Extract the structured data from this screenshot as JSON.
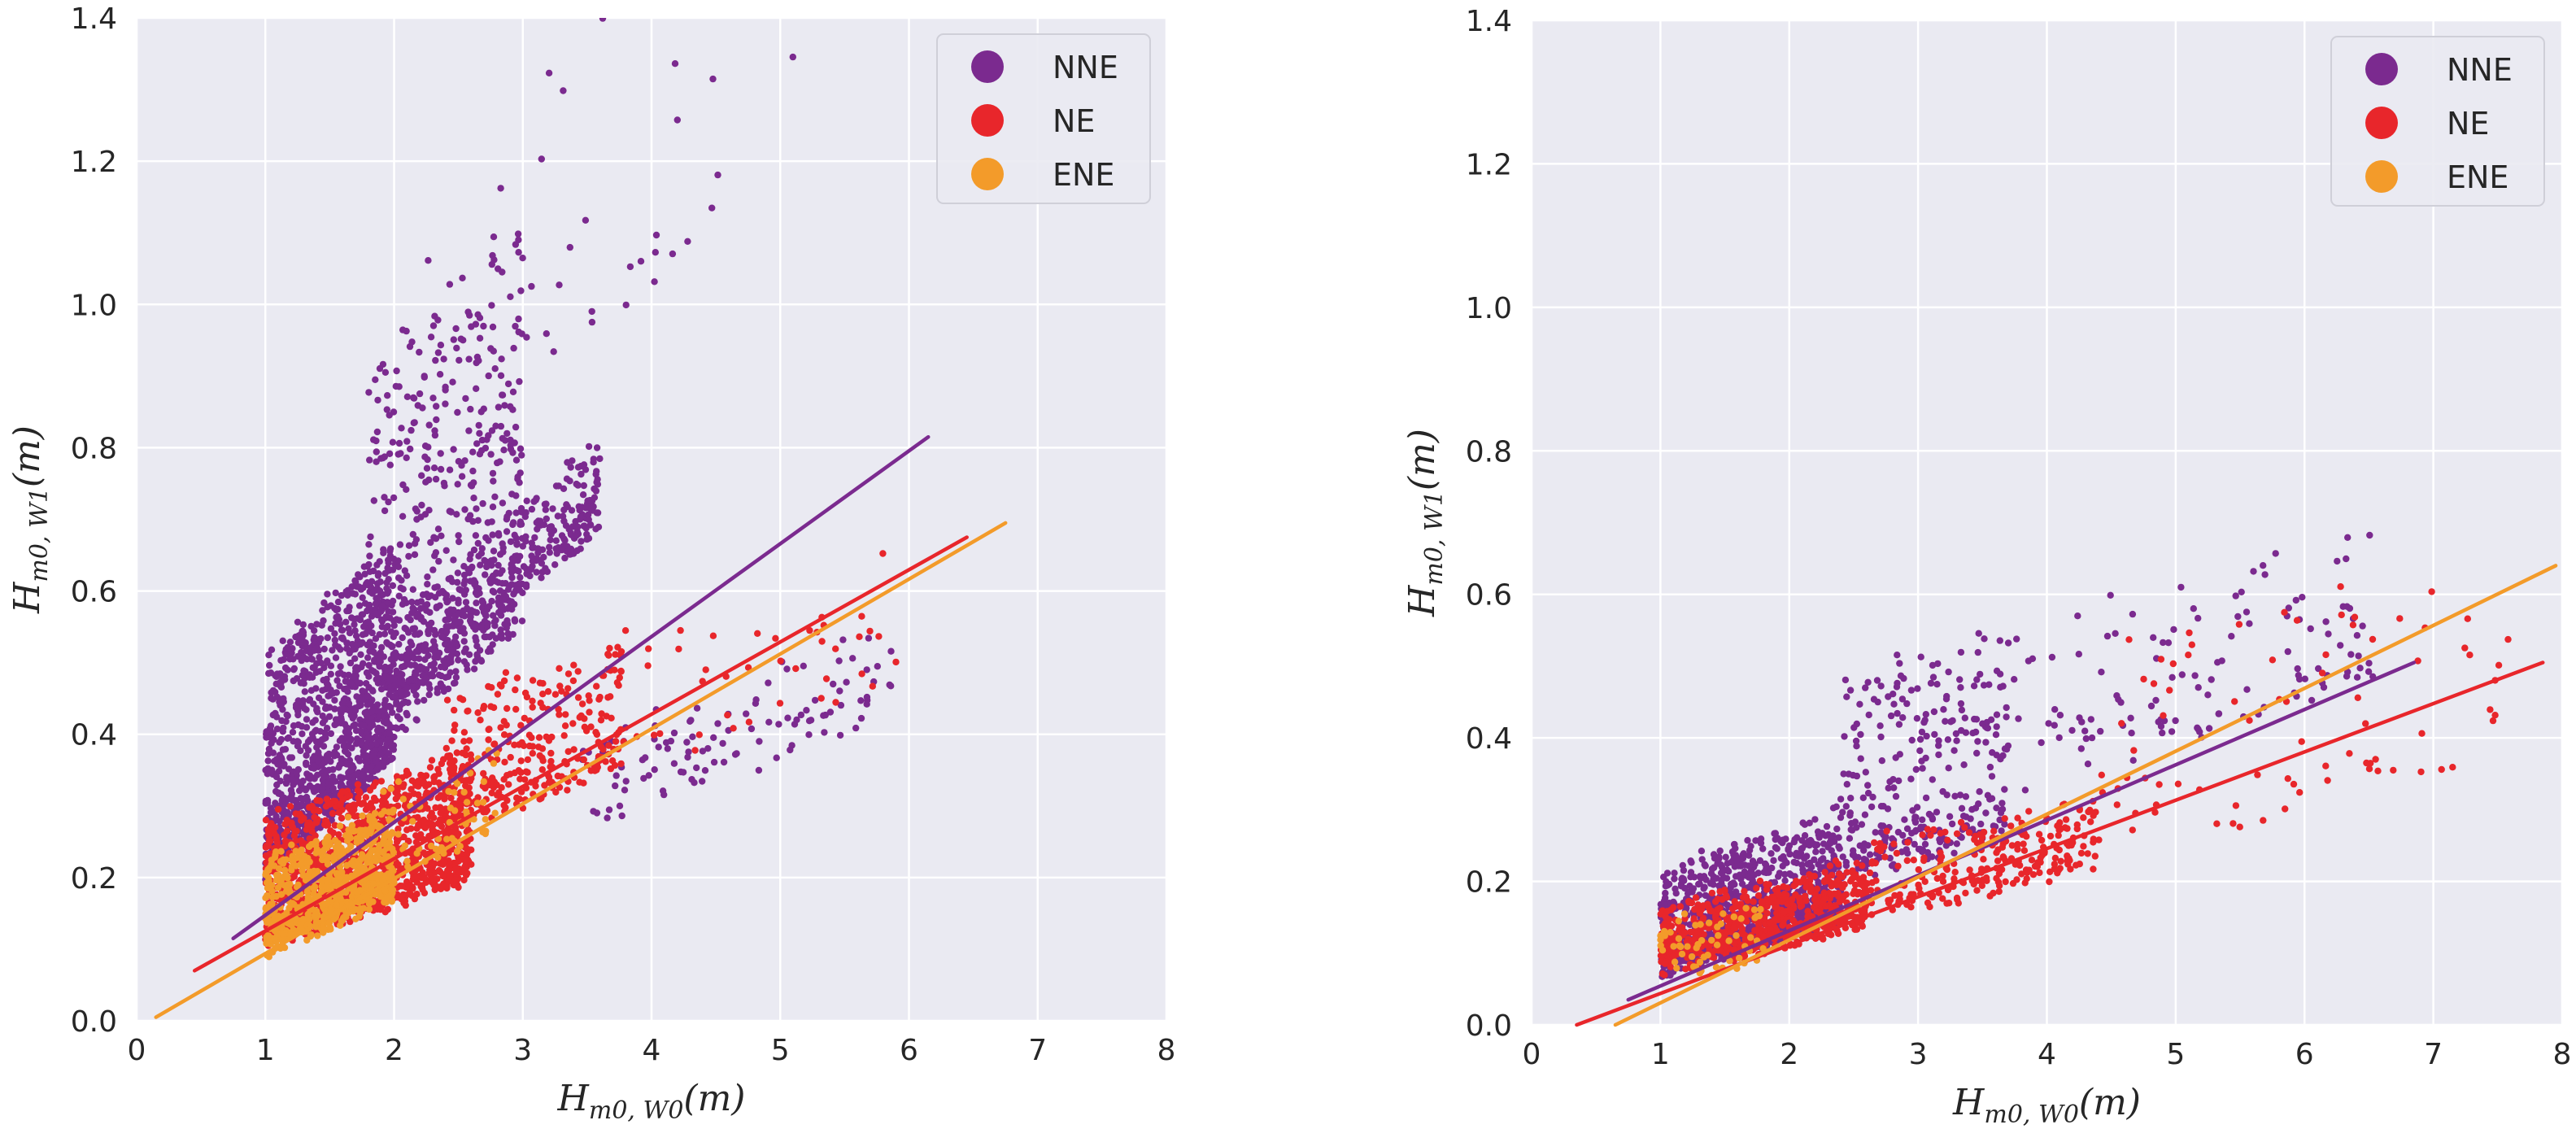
{
  "chart_data": [
    {
      "type": "scatter",
      "xlabel": {
        "main": "H",
        "sub": "m0, W0",
        "unit": "(m)"
      },
      "ylabel": {
        "main": "H",
        "sub": "m0, W1",
        "unit": "(m)"
      },
      "xlim": [
        0,
        8
      ],
      "ylim": [
        0,
        1.4
      ],
      "xticks": [
        "0",
        "1",
        "2",
        "3",
        "4",
        "5",
        "6",
        "7",
        "8"
      ],
      "yticks": [
        "0.0",
        "0.2",
        "0.4",
        "0.6",
        "0.8",
        "1.0",
        "1.2",
        "1.4"
      ],
      "grid": true,
      "legend_position": "top-right",
      "series": [
        {
          "name": "NNE",
          "color": "#7b2a8f",
          "fit": {
            "x": [
              0.75,
              6.15
            ],
            "y": [
              0.115,
              0.815
            ]
          },
          "cloud": [
            {
              "n": 1100,
              "x": [
                1.0,
                2.0
              ],
              "intercept": 0.0,
              "slope": 0.16,
              "base": 0.05,
              "spread": 0.3
            },
            {
              "n": 500,
              "x": [
                1.8,
                3.0
              ],
              "intercept": 0.0,
              "slope": 0.16,
              "base": 0.08,
              "spread": 0.55
            },
            {
              "n": 450,
              "x": [
                2.0,
                3.6
              ],
              "intercept": 0.0,
              "slope": 0.16,
              "base": 0.12,
              "spread": 0.12
            },
            {
              "n": 110,
              "x": [
                3.4,
                5.9
              ],
              "intercept": 0.05,
              "slope": 0.065,
              "base": 0.0,
              "spread": 0.12
            },
            {
              "n": 55,
              "x": [
                2.0,
                5.3
              ],
              "intercept": 0.0,
              "slope": 0.16,
              "base": 0.4,
              "spread": 0.5
            }
          ]
        },
        {
          "name": "NE",
          "color": "#e8262b",
          "fit": {
            "x": [
              0.45,
              6.45
            ],
            "y": [
              0.07,
              0.675
            ]
          },
          "cloud": [
            {
              "n": 1300,
              "x": [
                1.0,
                2.6
              ],
              "intercept": 0.03,
              "slope": 0.06,
              "base": 0.02,
              "spread": 0.17
            },
            {
              "n": 280,
              "x": [
                2.4,
                3.8
              ],
              "intercept": 0.03,
              "slope": 0.06,
              "base": 0.1,
              "spread": 0.18
            },
            {
              "n": 40,
              "x": [
                3.6,
                6.0
              ],
              "intercept": 0.03,
              "slope": 0.06,
              "base": 0.1,
              "spread": 0.2
            }
          ]
        },
        {
          "name": "ENE",
          "color": "#f39b2a",
          "fit": {
            "x": [
              0.15,
              6.75
            ],
            "y": [
              0.005,
              0.695
            ]
          },
          "cloud": [
            {
              "n": 700,
              "x": [
                1.0,
                2.0
              ],
              "intercept": 0.0,
              "slope": 0.08,
              "base": 0.02,
              "spread": 0.12
            },
            {
              "n": 60,
              "x": [
                1.9,
                2.8
              ],
              "intercept": 0.0,
              "slope": 0.08,
              "base": 0.05,
              "spread": 0.12
            }
          ]
        }
      ]
    },
    {
      "type": "scatter",
      "xlabel": {
        "main": "H",
        "sub": "m0, W0",
        "unit": "(m)"
      },
      "ylabel": {
        "main": "H",
        "sub": "m0, W1",
        "unit": "(m)"
      },
      "xlim": [
        0,
        8
      ],
      "ylim": [
        0,
        1.4
      ],
      "xticks": [
        "0",
        "1",
        "2",
        "3",
        "4",
        "5",
        "6",
        "7",
        "8"
      ],
      "yticks": [
        "0.0",
        "0.2",
        "0.4",
        "0.6",
        "0.8",
        "1.0",
        "1.2",
        "1.4"
      ],
      "grid": true,
      "legend_position": "top-right",
      "series": [
        {
          "name": "NNE",
          "color": "#7b2a8f",
          "fit": {
            "x": [
              0.75,
              6.85
            ],
            "y": [
              0.035,
              0.505
            ]
          },
          "cloud": [
            {
              "n": 900,
              "x": [
                1.0,
                2.4
              ],
              "intercept": 0.02,
              "slope": 0.055,
              "base": 0.0,
              "spread": 0.14
            },
            {
              "n": 300,
              "x": [
                2.4,
                3.7
              ],
              "intercept": 0.02,
              "slope": 0.055,
              "base": 0.05,
              "spread": 0.28
            },
            {
              "n": 130,
              "x": [
                3.6,
                6.6
              ],
              "intercept": 0.02,
              "slope": 0.055,
              "base": 0.1,
              "spread": 0.22
            }
          ]
        },
        {
          "name": "NE",
          "color": "#e8262b",
          "fit": {
            "x": [
              0.35,
              7.85
            ],
            "y": [
              0.0,
              0.505
            ]
          },
          "cloud": [
            {
              "n": 650,
              "x": [
                1.0,
                2.6
              ],
              "intercept": 0.02,
              "slope": 0.04,
              "base": 0.02,
              "spread": 0.08
            },
            {
              "n": 250,
              "x": [
                2.6,
                4.4
              ],
              "intercept": 0.02,
              "slope": 0.04,
              "base": 0.03,
              "spread": 0.1
            },
            {
              "n": 80,
              "x": [
                4.4,
                7.6
              ],
              "intercept": 0.02,
              "slope": 0.04,
              "base": 0.05,
              "spread": 0.3
            }
          ]
        },
        {
          "name": "ENE",
          "color": "#f39b2a",
          "fit": {
            "x": [
              0.65,
              7.95
            ],
            "y": [
              0.0,
              0.64
            ]
          },
          "cloud": [
            {
              "n": 60,
              "x": [
                1.0,
                1.8
              ],
              "intercept": 0.02,
              "slope": 0.03,
              "base": 0.02,
              "spread": 0.07
            }
          ]
        }
      ]
    }
  ]
}
